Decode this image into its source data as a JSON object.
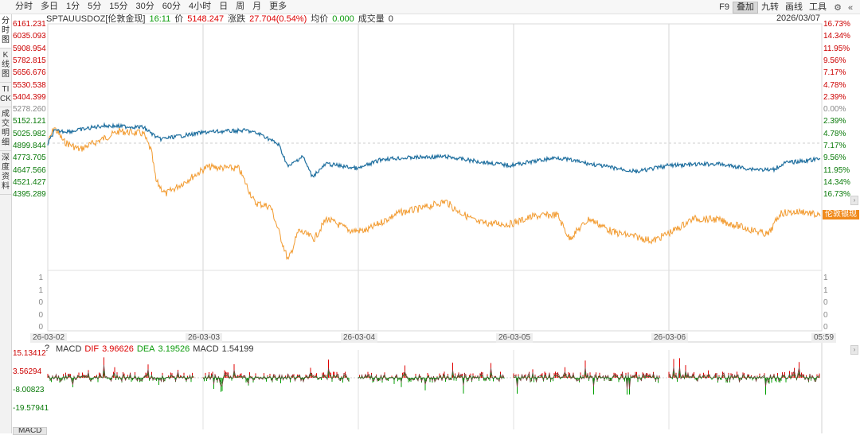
{
  "toolbar": {
    "periods": [
      "分时",
      "多日",
      "1分",
      "5分",
      "15分",
      "30分",
      "60分",
      "4小时",
      "日",
      "周",
      "月",
      "更多"
    ],
    "right_items": [
      {
        "label": "F9",
        "active": false
      },
      {
        "label": "叠加",
        "active": true
      },
      {
        "label": "九转",
        "active": false
      },
      {
        "label": "画线",
        "active": false
      },
      {
        "label": "工具",
        "active": false
      }
    ],
    "icons": [
      "settings-icon",
      "collapse-icon"
    ]
  },
  "side_tabs": [
    {
      "label": "分时图",
      "active": true
    },
    {
      "label": "K线图",
      "active": false
    },
    {
      "label": "TICK",
      "active": false
    },
    {
      "label": "成交明细",
      "active": false
    },
    {
      "label": "深度资料",
      "active": false
    }
  ],
  "info": {
    "symbol": "SPTAUUSDOZ[伦敦金现]",
    "time": "16:11",
    "price_label": "价",
    "price": "5148.247",
    "change_label": "涨跌",
    "change": "27.704(0.54%)",
    "avg_label": "均价",
    "avg": "0.000",
    "volume_label": "成交量",
    "volume": "0",
    "date": "2026/03/07"
  },
  "price_axis_left": [
    "6161.231",
    "6035.093",
    "5908.954",
    "5782.815",
    "5656.676",
    "5530.538",
    "5404.399",
    "5278.260",
    "5152.121",
    "5025.982",
    "4899.844",
    "4773.705",
    "4647.566",
    "4521.427",
    "4395.289"
  ],
  "price_axis_right": [
    "16.73%",
    "14.34%",
    "11.95%",
    "9.56%",
    "7.17%",
    "4.78%",
    "2.39%",
    "0.00%",
    "2.39%",
    "4.78%",
    "7.17%",
    "9.56%",
    "11.95%",
    "14.34%",
    "16.73%"
  ],
  "volume_axis_left": [
    "1",
    "1",
    "0",
    "0",
    "0"
  ],
  "volume_axis_right": [
    "1",
    "1",
    "0",
    "0",
    "0"
  ],
  "x_labels": [
    "26-03-02",
    "26-03-03",
    "26-03-04",
    "26-03-05",
    "26-03-06",
    "05:59"
  ],
  "overlay_tag": "伦敦银现",
  "macd": {
    "help": "?",
    "name": "MACD",
    "dif_label": "DIF",
    "dif": "3.96626",
    "dea_label": "DEA",
    "dea": "3.19526",
    "macd_label": "MACD",
    "macd_value": "1.54199",
    "axis": [
      "15.13412",
      "3.56294",
      "-8.00823",
      "-19.57941"
    ],
    "bottom_tab": "MACD"
  },
  "colors": {
    "gold_line": "#1f6f9f",
    "silver_line": "#f29a2e",
    "up": "#e00000",
    "down": "#00a000",
    "dif": "#7a3b3b",
    "dea": "#2a7a2a"
  }
}
